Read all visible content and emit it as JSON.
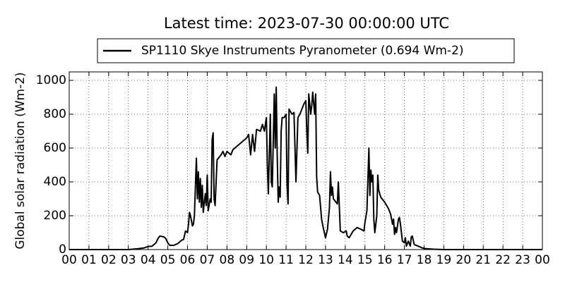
{
  "chart_data": {
    "type": "line",
    "title": "Latest time: 2023-07-30 00:00:00 UTC",
    "ylabel": "Global solar radiation (Wm-2)",
    "x": [
      0,
      3,
      3.5,
      3.8,
      4,
      4.2,
      4.4,
      4.5,
      4.6,
      4.8,
      4.9,
      5,
      5.1,
      5.3,
      5.5,
      5.7,
      5.8,
      5.9,
      6,
      6.05,
      6.1,
      6.15,
      6.25,
      6.3,
      6.35,
      6.45,
      6.5,
      6.55,
      6.6,
      6.65,
      6.7,
      6.75,
      6.8,
      6.9,
      6.95,
      7,
      7.05,
      7.15,
      7.2,
      7.25,
      7.3,
      7.35,
      7.4,
      7.5,
      7.7,
      7.8,
      7.9,
      8,
      8.2,
      8.3,
      8.6,
      9,
      9.1,
      9.2,
      9.3,
      9.4,
      9.5,
      9.7,
      9.8,
      9.9,
      10,
      10.05,
      10.1,
      10.2,
      10.25,
      10.3,
      10.4,
      10.45,
      10.5,
      10.55,
      10.6,
      10.65,
      10.7,
      10.75,
      10.8,
      10.9,
      11,
      11.05,
      11.1,
      11.15,
      11.3,
      11.4,
      11.5,
      11.6,
      11.7,
      11.8,
      11.9,
      12,
      12.05,
      12.1,
      12.15,
      12.25,
      12.3,
      12.35,
      12.45,
      12.5,
      12.55,
      12.6,
      12.7,
      12.8,
      12.9,
      13,
      13.1,
      13.2,
      13.25,
      13.3,
      13.35,
      13.4,
      13.6,
      13.65,
      13.75,
      13.9,
      14.05,
      14.1,
      14.2,
      14.4,
      14.5,
      14.6,
      14.8,
      14.95,
      15,
      15.1,
      15.2,
      15.25,
      15.3,
      15.35,
      15.4,
      15.45,
      15.5,
      15.6,
      15.65,
      15.7,
      15.8,
      16,
      16.2,
      16.3,
      16.4,
      16.45,
      16.5,
      16.55,
      16.6,
      16.7,
      16.75,
      16.8,
      16.85,
      16.9,
      17,
      17.05,
      17.1,
      17.2,
      17.3,
      17.35,
      17.4,
      17.5,
      17.7,
      17.9,
      18.1,
      18.5,
      19,
      24
    ],
    "series": [
      {
        "name": "SP1110 Skye Instruments Pyranometer (0.694 Wm-2)",
        "color": "#000000",
        "values": [
          0,
          0,
          5,
          10,
          18,
          20,
          40,
          65,
          80,
          75,
          65,
          40,
          25,
          25,
          35,
          55,
          60,
          110,
          100,
          150,
          220,
          200,
          140,
          150,
          200,
          540,
          300,
          460,
          280,
          420,
          250,
          380,
          220,
          330,
          260,
          440,
          230,
          300,
          280,
          650,
          690,
          300,
          260,
          530,
          560,
          580,
          550,
          580,
          560,
          590,
          620,
          660,
          680,
          560,
          680,
          580,
          710,
          700,
          740,
          700,
          780,
          500,
          330,
          800,
          400,
          370,
          920,
          600,
          960,
          560,
          280,
          370,
          310,
          700,
          780,
          780,
          800,
          380,
          270,
          830,
          800,
          810,
          400,
          780,
          800,
          830,
          860,
          880,
          700,
          570,
          920,
          800,
          850,
          930,
          800,
          920,
          430,
          340,
          320,
          180,
          120,
          70,
          120,
          250,
          460,
          320,
          370,
          300,
          270,
          400,
          110,
          100,
          110,
          80,
          70,
          110,
          120,
          130,
          120,
          110,
          160,
          230,
          600,
          320,
          470,
          400,
          440,
          180,
          100,
          200,
          440,
          350,
          310,
          280,
          240,
          210,
          150,
          180,
          90,
          130,
          100,
          180,
          190,
          150,
          100,
          50,
          40,
          70,
          20,
          50,
          20,
          75,
          80,
          30,
          20,
          10,
          5,
          2,
          0,
          0
        ]
      }
    ],
    "xlim": [
      0,
      24
    ],
    "xticks": [
      {
        "value": 0,
        "label": "00"
      },
      {
        "value": 1,
        "label": "01"
      },
      {
        "value": 2,
        "label": "02"
      },
      {
        "value": 3,
        "label": "03"
      },
      {
        "value": 4,
        "label": "04"
      },
      {
        "value": 5,
        "label": "05"
      },
      {
        "value": 6,
        "label": "06"
      },
      {
        "value": 7,
        "label": "07"
      },
      {
        "value": 8,
        "label": "08"
      },
      {
        "value": 9,
        "label": "09"
      },
      10,
      11,
      12,
      13,
      14,
      15,
      16,
      17,
      18,
      19,
      20,
      21,
      22,
      23,
      {
        "value": 24,
        "label": "00"
      }
    ],
    "ylim": [
      0,
      1050
    ],
    "yticks": [
      0,
      200,
      400,
      600,
      800,
      1000
    ],
    "grid": true,
    "legend": "top"
  }
}
